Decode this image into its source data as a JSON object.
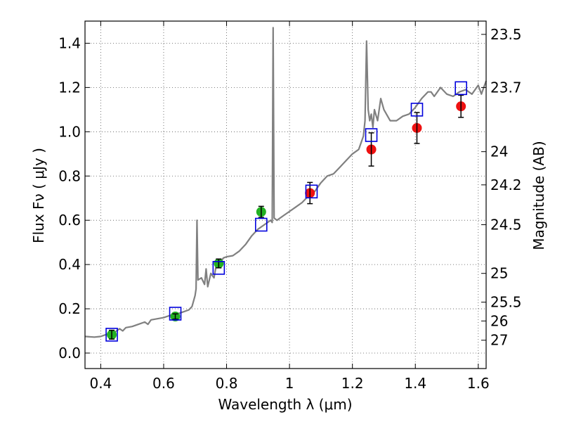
{
  "chart_data": {
    "type": "scatter",
    "xlabel": "Wavelength  λ (μm)",
    "ylabel": "Flux  Fν  ( μJy )",
    "y2label": "Magnitude (AB)",
    "xlim": [
      0.35,
      1.625
    ],
    "ylim": [
      -0.07,
      1.5
    ],
    "grid": true,
    "x_ticks": [
      0.4,
      0.6,
      0.8,
      1.0,
      1.2,
      1.4,
      1.6
    ],
    "x_tick_labels": [
      "0.4",
      "0.6",
      "0.8",
      "1",
      "1.2",
      "1.4",
      "1.6"
    ],
    "y_ticks": [
      0.0,
      0.2,
      0.4,
      0.6,
      0.8,
      1.0,
      1.2,
      1.4
    ],
    "y_tick_labels": [
      "0.0",
      "0.2",
      "0.4",
      "0.6",
      "0.8",
      "1.0",
      "1.2",
      "1.4"
    ],
    "right_ticks": [
      {
        "label": "23.5",
        "flux": 1.44
      },
      {
        "label": "23.7",
        "flux": 1.2
      },
      {
        "label": "24",
        "flux": 0.91
      },
      {
        "label": "24.2",
        "flux": 0.76
      },
      {
        "label": "24.5",
        "flux": 0.58
      },
      {
        "label": "25",
        "flux": 0.36
      },
      {
        "label": "25.5",
        "flux": 0.23
      },
      {
        "label": "26",
        "flux": 0.145
      },
      {
        "label": "27",
        "flux": 0.058
      }
    ],
    "colors": {
      "spectrum": "#808080",
      "green_points": "#22b022",
      "red_points": "#ee1111",
      "model_boxes": "#0000dd",
      "errorbars": "#000000",
      "grid": "#555555"
    },
    "series": [
      {
        "name": "Model spectrum",
        "kind": "line",
        "points": [
          [
            0.35,
            0.075
          ],
          [
            0.38,
            0.072
          ],
          [
            0.4,
            0.075
          ],
          [
            0.42,
            0.085
          ],
          [
            0.44,
            0.09
          ],
          [
            0.45,
            0.1
          ],
          [
            0.46,
            0.11
          ],
          [
            0.47,
            0.1
          ],
          [
            0.48,
            0.115
          ],
          [
            0.5,
            0.12
          ],
          [
            0.52,
            0.13
          ],
          [
            0.54,
            0.14
          ],
          [
            0.55,
            0.13
          ],
          [
            0.56,
            0.15
          ],
          [
            0.58,
            0.155
          ],
          [
            0.6,
            0.16
          ],
          [
            0.62,
            0.17
          ],
          [
            0.64,
            0.175
          ],
          [
            0.66,
            0.185
          ],
          [
            0.68,
            0.195
          ],
          [
            0.69,
            0.21
          ],
          [
            0.7,
            0.26
          ],
          [
            0.703,
            0.29
          ],
          [
            0.706,
            0.6
          ],
          [
            0.709,
            0.33
          ],
          [
            0.72,
            0.34
          ],
          [
            0.73,
            0.31
          ],
          [
            0.735,
            0.38
          ],
          [
            0.74,
            0.3
          ],
          [
            0.75,
            0.36
          ],
          [
            0.76,
            0.34
          ],
          [
            0.77,
            0.42
          ],
          [
            0.78,
            0.41
          ],
          [
            0.79,
            0.43
          ],
          [
            0.8,
            0.435
          ],
          [
            0.82,
            0.44
          ],
          [
            0.84,
            0.46
          ],
          [
            0.86,
            0.49
          ],
          [
            0.88,
            0.53
          ],
          [
            0.9,
            0.56
          ],
          [
            0.92,
            0.58
          ],
          [
            0.94,
            0.6
          ],
          [
            0.945,
            0.59
          ],
          [
            0.948,
            1.47
          ],
          [
            0.951,
            0.61
          ],
          [
            0.96,
            0.6
          ],
          [
            0.98,
            0.62
          ],
          [
            1.0,
            0.64
          ],
          [
            1.02,
            0.66
          ],
          [
            1.04,
            0.68
          ],
          [
            1.06,
            0.71
          ],
          [
            1.08,
            0.73
          ],
          [
            1.1,
            0.77
          ],
          [
            1.12,
            0.8
          ],
          [
            1.14,
            0.81
          ],
          [
            1.16,
            0.84
          ],
          [
            1.18,
            0.87
          ],
          [
            1.2,
            0.9
          ],
          [
            1.22,
            0.92
          ],
          [
            1.235,
            0.98
          ],
          [
            1.24,
            1.05
          ],
          [
            1.245,
            1.41
          ],
          [
            1.25,
            1.1
          ],
          [
            1.255,
            1.05
          ],
          [
            1.26,
            1.08
          ],
          [
            1.265,
            1.02
          ],
          [
            1.27,
            1.1
          ],
          [
            1.28,
            1.05
          ],
          [
            1.29,
            1.15
          ],
          [
            1.3,
            1.1
          ],
          [
            1.32,
            1.05
          ],
          [
            1.34,
            1.05
          ],
          [
            1.36,
            1.07
          ],
          [
            1.38,
            1.08
          ],
          [
            1.4,
            1.11
          ],
          [
            1.42,
            1.15
          ],
          [
            1.44,
            1.18
          ],
          [
            1.45,
            1.18
          ],
          [
            1.46,
            1.16
          ],
          [
            1.48,
            1.2
          ],
          [
            1.5,
            1.17
          ],
          [
            1.52,
            1.16
          ],
          [
            1.54,
            1.18
          ],
          [
            1.56,
            1.19
          ],
          [
            1.58,
            1.17
          ],
          [
            1.6,
            1.21
          ],
          [
            1.61,
            1.17
          ],
          [
            1.625,
            1.23
          ]
        ]
      },
      {
        "name": "Green photometry",
        "kind": "points",
        "points": [
          {
            "x": 0.435,
            "y": 0.083,
            "err": 0.02
          },
          {
            "x": 0.637,
            "y": 0.165,
            "err": 0.012
          },
          {
            "x": 0.775,
            "y": 0.405,
            "err": 0.02
          },
          {
            "x": 0.91,
            "y": 0.638,
            "err": 0.025
          }
        ]
      },
      {
        "name": "Red photometry",
        "kind": "points",
        "points": [
          {
            "x": 1.065,
            "y": 0.723,
            "err": 0.048
          },
          {
            "x": 1.26,
            "y": 0.92,
            "err": 0.075
          },
          {
            "x": 1.405,
            "y": 1.017,
            "err": 0.07
          },
          {
            "x": 1.545,
            "y": 1.115,
            "err": 0.05
          }
        ]
      },
      {
        "name": "Model synthetic photometry",
        "kind": "boxes",
        "points": [
          {
            "x": 0.435,
            "y": 0.083
          },
          {
            "x": 0.637,
            "y": 0.178
          },
          {
            "x": 0.775,
            "y": 0.385
          },
          {
            "x": 0.91,
            "y": 0.58
          },
          {
            "x": 1.07,
            "y": 0.73
          },
          {
            "x": 1.26,
            "y": 0.985
          },
          {
            "x": 1.405,
            "y": 1.1
          },
          {
            "x": 1.545,
            "y": 1.197
          }
        ]
      }
    ]
  }
}
